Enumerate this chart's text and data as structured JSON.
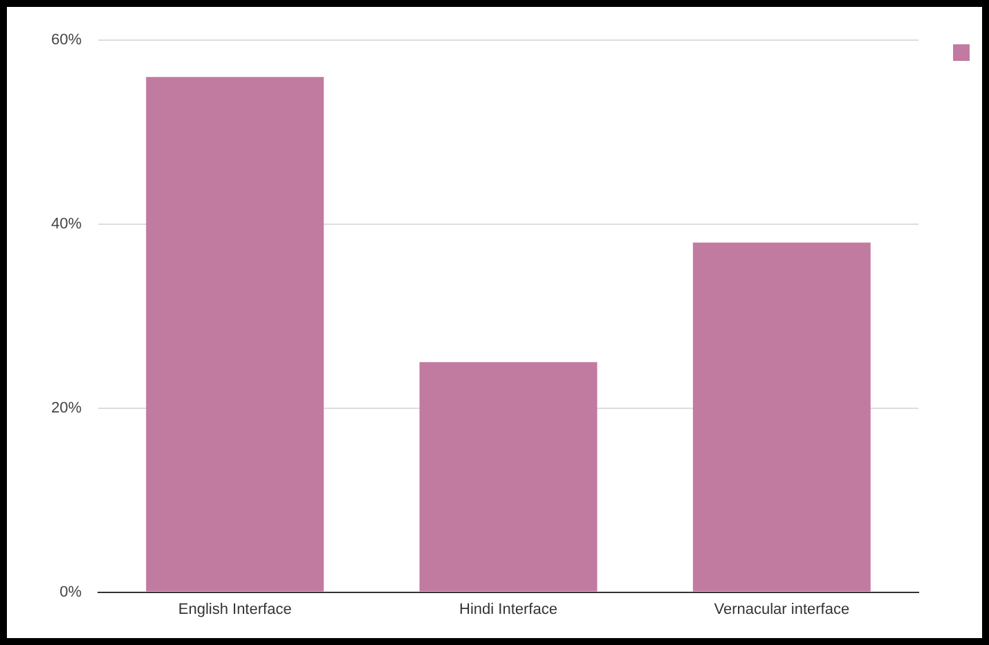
{
  "chart_data": {
    "type": "bar",
    "categories": [
      "English Interface",
      "Hindi Interface",
      "Vernacular interface"
    ],
    "series": [
      {
        "color": "#c27ba0",
        "values": [
          56,
          25,
          38
        ]
      }
    ],
    "ylim": [
      0,
      60
    ],
    "yticks": [
      {
        "value": 0,
        "label": "0%"
      },
      {
        "value": 20,
        "label": "20%"
      },
      {
        "value": 40,
        "label": "40%"
      },
      {
        "value": 60,
        "label": "60%"
      }
    ],
    "grid": "y"
  }
}
